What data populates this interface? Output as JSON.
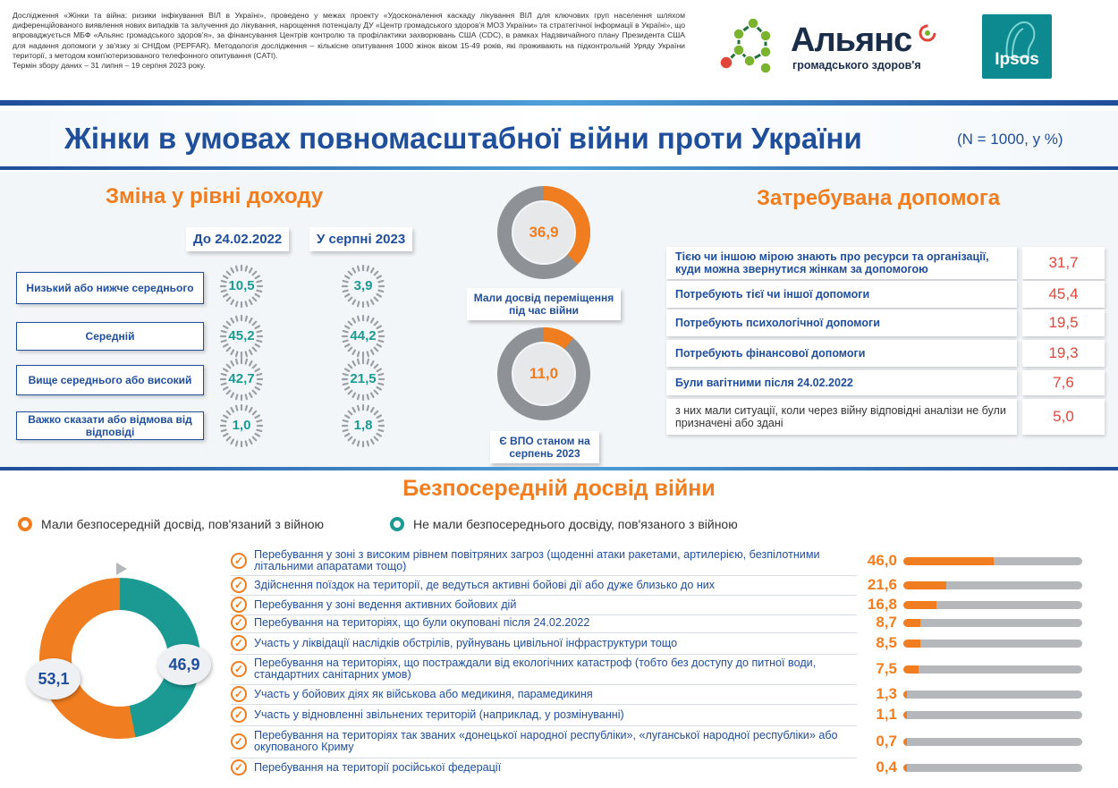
{
  "header": {
    "study_note": "Дослідження «Жінки та війна: ризики інфікування ВІЛ в Україні», проведено у межах проекту «Удосконалення каскаду лікування ВІЛ для ключових груп населення шляхом диференційованого виявлення нових випадків та залучення до лікування, нарощення потенціалу ДУ «Центр громадського здоров'я МОЗ України» та стратегічної інформації в Україні», що впроваджується МБФ «Альянс громадського здоров'я», за фінансування Центрів контролю та профілактики захворювань США (CDC), в рамках Надзвичайного плану Президента США для надання допомоги у зв'язку зі СНІДом (PEPFAR). Методологія дослідження – кількісне опитування 1000 жінок віком 15-49 років, які проживають на підконтрольній Уряду України території, з методом комп'ютеризованого телефонного опитування (CATI).",
    "period_note": "Термін збору даних – 31 липня – 19 серпня 2023 року.",
    "logo_alliance_main": "Альянс",
    "logo_alliance_sub": "громадського здоров'я",
    "logo_ipsos": "Ipsos"
  },
  "title": {
    "main": "Жінки в умовах повномасштабної війни проти України",
    "subtitle": "(N = 1000, у %)"
  },
  "income": {
    "title": "Зміна у рівні доходу",
    "col_before": "До 24.02.2022",
    "col_after": "У серпні 2023",
    "rows": [
      {
        "label": "Низький або нижче середнього",
        "before": "10,5",
        "after": "3,9",
        "before_pct": 10.5,
        "after_pct": 3.9
      },
      {
        "label": "Середній",
        "before": "45,2",
        "after": "44,2",
        "before_pct": 45.2,
        "after_pct": 44.2
      },
      {
        "label": "Вище середнього або високий",
        "before": "42,7",
        "after": "21,5",
        "before_pct": 42.7,
        "after_pct": 21.5
      },
      {
        "label": "Важко сказати або відмова від відповіді",
        "before": "1,0",
        "after": "1,8",
        "before_pct": 1.0,
        "after_pct": 1.8
      }
    ]
  },
  "displacement": {
    "displaced": {
      "value": "36,9",
      "pct": 36.9,
      "label": "Мали досвід переміщення під час війни"
    },
    "idp": {
      "value": "11,0",
      "pct": 11.0,
      "label": "Є ВПО станом на серпень 2023"
    }
  },
  "help": {
    "title": "Затребувана допомога",
    "rows": [
      {
        "label": "Тією чи іншою мірою знають про ресурси та організації, куди можна звернутися жінкам за допомогою",
        "value": "31,7",
        "style": "bold"
      },
      {
        "label": "Потребують тієї чи іншої допомоги",
        "value": "45,4",
        "style": "bold"
      },
      {
        "label": "Потребують психологічної допомоги",
        "value": "19,5",
        "style": "bold"
      },
      {
        "label": "Потребують фінансової допомоги",
        "value": "19,3",
        "style": "bold"
      },
      {
        "label": "Були вагітними після 24.02.2022",
        "value": "7,6",
        "style": "bold"
      },
      {
        "label": "з них мали ситуації, коли через війну відповідні аналізи не були призначені або здані",
        "value": "5,0",
        "style": "light"
      }
    ]
  },
  "war": {
    "title": "Безпосередній досвід війни",
    "legend_had": "Мали безпосередній досвід, пов'язаний з війною",
    "legend_not": "Не мали безпосереднього досвіду, пов'язаного з війною",
    "donut": {
      "had": "53,1",
      "had_pct": 53.1,
      "not": "46,9",
      "not_pct": 46.9
    },
    "items": [
      {
        "label": "Перебування у зоні з високим рівнем повітряних загроз (щоденні атаки ракетами, артилерією, безпілотними літальними апаратами тощо)",
        "value": "46,0",
        "pct": 46.0
      },
      {
        "label": "Здійснення поїздок на території, де ведуться активні бойові дії або дуже близько до них",
        "value": "21,6",
        "pct": 21.6
      },
      {
        "label": "Перебування у зоні ведення активних бойових дій",
        "value": "16,8",
        "pct": 16.8
      },
      {
        "label": "Перебування на територіях, що були окуповані після 24.02.2022",
        "value": "8,7",
        "pct": 8.7
      },
      {
        "label": "Участь у ліквідації наслідків обстрілів, руйнувань цивільної інфраструктури тощо",
        "value": "8,5",
        "pct": 8.5
      },
      {
        "label": "Перебування на територіях, що постраждали від екологічних катастроф (тобто без доступу до питної води, стандартних санітарних умов)",
        "value": "7,5",
        "pct": 7.5
      },
      {
        "label": "Участь у бойових діях як військова або медикиня, парамедикиня",
        "value": "1,3",
        "pct": 1.3
      },
      {
        "label": "Участь у відновленні звільнених територій (наприклад, у розмінуванні)",
        "value": "1,1",
        "pct": 1.1
      },
      {
        "label": "Перебування на територіях так званих «донецької народної республіки», «луганської народної республіки» або окупованого Криму",
        "value": "0,7",
        "pct": 0.7
      },
      {
        "label": "Перебування на території російської федерації",
        "value": "0,4",
        "pct": 0.4
      }
    ]
  },
  "colors": {
    "blue": "#1f4e9a",
    "orange": "#f07d1f",
    "teal": "#1a9a93",
    "gray": "#b5b7ba",
    "red_value": "#e0473a"
  }
}
